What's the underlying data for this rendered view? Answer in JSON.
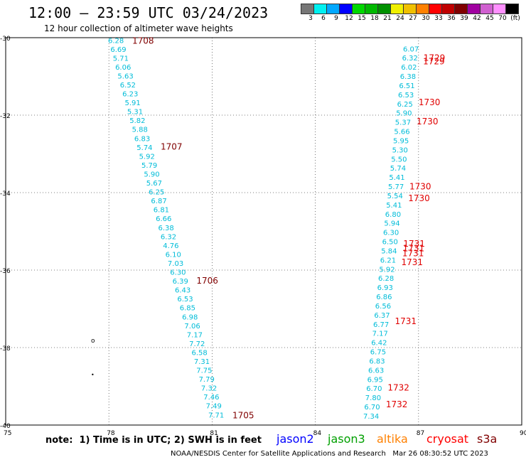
{
  "header": {
    "title": "12:00 – 23:59 UTC 03/24/2023",
    "subtitle": "12 hour collection of altimeter wave heights"
  },
  "legend": {
    "colors": [
      "#777777",
      "#00f0f0",
      "#00a8ff",
      "#0000ff",
      "#00d800",
      "#00b800",
      "#009000",
      "#f0f000",
      "#f0c000",
      "#ff8000",
      "#ff0000",
      "#c00000",
      "#800000",
      "#a000a0",
      "#d060d0",
      "#ff90ff",
      "#000000"
    ],
    "labels": [
      "3",
      "6",
      "9",
      "12",
      "15",
      "18",
      "21",
      "24",
      "27",
      "30",
      "33",
      "36",
      "39",
      "42",
      "45",
      "70",
      "(ft)"
    ]
  },
  "map": {
    "x_ticks": [
      "75",
      "78",
      "81",
      "84",
      "87",
      "90"
    ],
    "y_ticks": [
      "-30",
      "-32",
      "-34",
      "-36",
      "-38",
      "-40"
    ],
    "x_range": [
      75,
      90
    ],
    "y_range": [
      -40,
      -30
    ],
    "colors": {
      "cyan": "#00bcd8",
      "time": "#800000",
      "time_red": "#e00000"
    },
    "west_track": {
      "values": [
        "6.28",
        "6.69",
        "5.71",
        "6.06",
        "5.63",
        "6.52",
        "6.23",
        "5.91",
        "5.31",
        "5.82",
        "5.88",
        "6.83",
        "5.74",
        "5.92",
        "5.79",
        "5.90",
        "5.67",
        "6.25",
        "6.87",
        "6.81",
        "6.66",
        "6.38",
        "6.32",
        "4.76",
        "6.10",
        "7.03",
        "6.30",
        "6.39",
        "6.43",
        "6.53",
        "6.85",
        "6.98",
        "7.06",
        "7.17",
        "7.72",
        "6.58",
        "7.31",
        "7.75",
        "7.79",
        "7.32",
        "7.46",
        "7.49",
        "7.71"
      ],
      "times": [
        {
          "label": "1708",
          "lat": -30.06
        },
        {
          "label": "1707",
          "lat": -32.8
        },
        {
          "label": "1706",
          "lat": -36.26
        },
        {
          "label": "1705",
          "lat": -39.73
        }
      ]
    },
    "east_track": {
      "values": [
        "6.07",
        "6.32",
        "6.02",
        "6.38",
        "6.51",
        "6.53",
        "6.25",
        "5.90",
        "5.37",
        "5.66",
        "5.95",
        "5.30",
        "5.50",
        "5.74",
        "5.41",
        "5.77",
        "5.54",
        "5.41",
        "6.80",
        "5.94",
        "6.30",
        "6.50",
        "5.84",
        "6.21",
        "5.92",
        "6.28",
        "6.93",
        "6.86",
        "6.56",
        "6.37",
        "6.77",
        "7.17",
        "6.42",
        "6.75",
        "6.83",
        "6.63",
        "6.95",
        "6.70",
        "7.80",
        "6.70",
        "7.34"
      ],
      "times": [
        {
          "label": "1729",
          "lat": -30.5
        },
        {
          "label": "1729",
          "lat": -30.6
        },
        {
          "label": "1730",
          "lat": -31.65
        },
        {
          "label": "1730",
          "lat": -32.15
        },
        {
          "label": "1730",
          "lat": -33.83
        },
        {
          "label": "1730",
          "lat": -34.13
        },
        {
          "label": "1731",
          "lat": -35.3
        },
        {
          "label": "1731",
          "lat": -35.42
        },
        {
          "label": "1731",
          "lat": -35.55
        },
        {
          "label": "1731",
          "lat": -35.78
        },
        {
          "label": "1731",
          "lat": -37.3
        },
        {
          "label": "1732",
          "lat": -39.02
        },
        {
          "label": "1732",
          "lat": -39.45
        }
      ]
    }
  },
  "footer": {
    "note": "note:  1) Time is in UTC; 2) SWH is in feet",
    "satellites": [
      {
        "name": "jason2",
        "color": "#0000ff"
      },
      {
        "name": "jason3",
        "color": "#00a000"
      },
      {
        "name": "altika",
        "color": "#ff8000"
      },
      {
        "name": "cryosat",
        "color": "#ff0000"
      },
      {
        "name": "s3a",
        "color": "#800000"
      }
    ],
    "credit": "NOAA/NESDIS Center for Satellite Applications and Research   Mar 26 08:30:52 UTC 2023"
  }
}
